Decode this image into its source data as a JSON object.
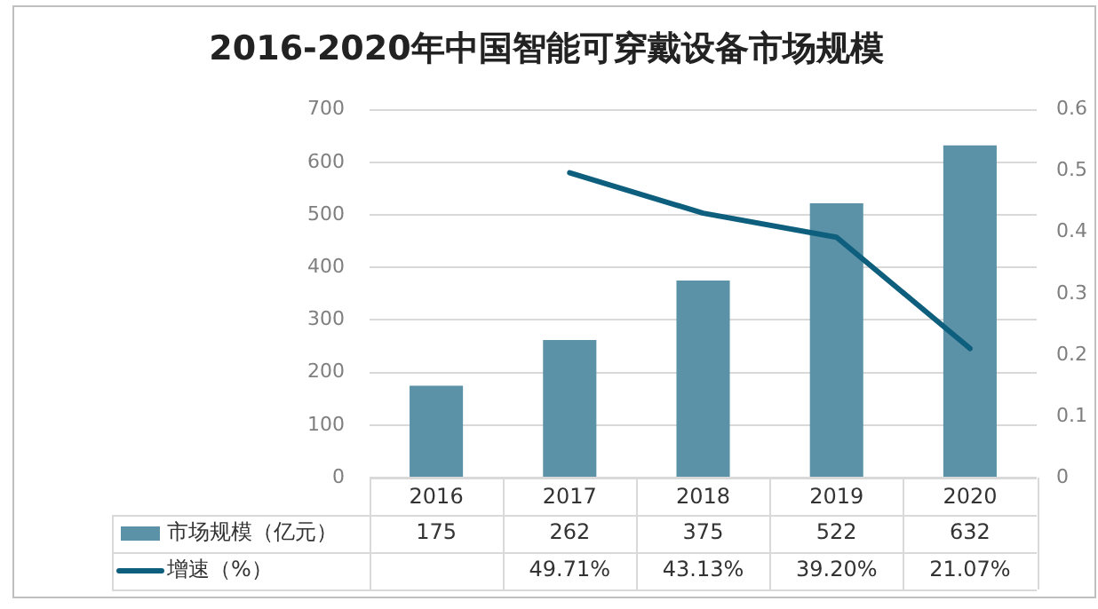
{
  "chart_data": {
    "type": "bar",
    "title": "2016-2020年中国智能可穿戴设备市场规模",
    "categories": [
      "2016",
      "2017",
      "2018",
      "2019",
      "2020"
    ],
    "series": [
      {
        "name": "市场规模（亿元）",
        "color": "#5b92a8",
        "values": [
          175,
          262,
          375,
          522,
          632
        ],
        "value_labels": [
          "175",
          "262",
          "375",
          "522",
          "632"
        ]
      },
      {
        "name": "增速（%）",
        "type": "line",
        "axis": "y2",
        "color": "#0e5f7e",
        "values": [
          null,
          0.4971,
          0.4313,
          0.392,
          0.2107
        ],
        "value_labels": [
          null,
          "49.71%",
          "43.13%",
          "39.20%",
          "21.07%"
        ]
      }
    ],
    "ylim": [
      0,
      700
    ],
    "yticks": [
      0,
      100,
      200,
      300,
      400,
      500,
      600,
      700
    ],
    "y2lim": [
      0,
      0.6
    ],
    "y2ticks": [
      0,
      0.1,
      0.2,
      0.3,
      0.4,
      0.5,
      0.6
    ],
    "grid": "y",
    "legend": "bottom",
    "marker": "none",
    "line_style": "solid"
  }
}
